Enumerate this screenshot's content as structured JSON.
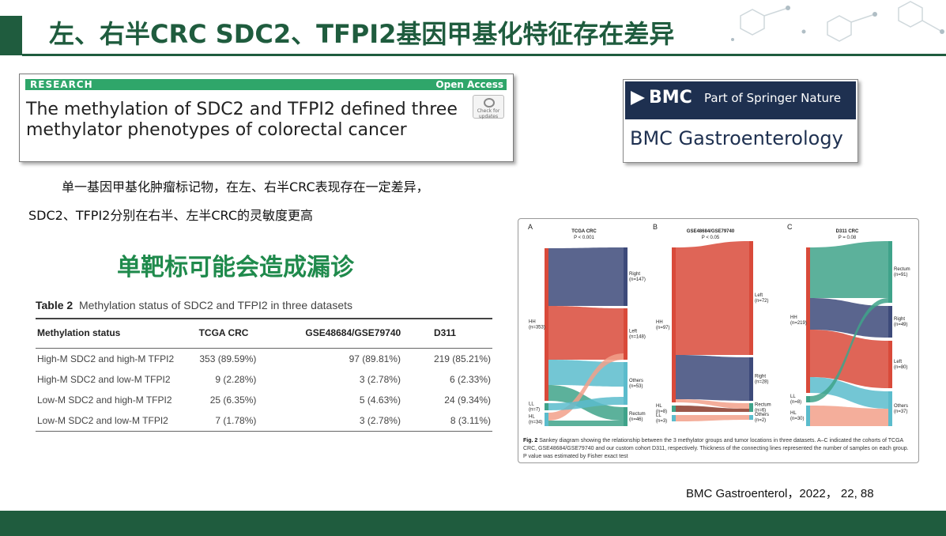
{
  "slide": {
    "title": "左、右半CRC SDC2、TFPI2基因甲基化特征存在差异",
    "paper": {
      "badge": "RESEARCH",
      "open_access": "Open Access",
      "title": "The methylation of SDC2 and TFPI2 defined three methylator phenotypes of colorectal cancer",
      "check_label": "Check for updates"
    },
    "journal": {
      "brand": "BMC",
      "part_of": "Part of Springer Nature",
      "name": "BMC Gastroenterology"
    },
    "description_line1": "单一基因甲基化肿瘤标记物，在左、右半CRC表现存在一定差异，",
    "description_line2": "SDC2、TFPI2分别在右半、左半CRC的灵敏度更高",
    "emphasis": "单靶标可能会造成漏诊",
    "citation": "BMC Gastroenterol，2022， 22, 88"
  },
  "table": {
    "label": "Table 2",
    "caption": "Methylation status of SDC2 and TFPI2 in three datasets",
    "headers": [
      "Methylation status",
      "TCGA CRC",
      "GSE48684/GSE79740",
      "D311"
    ],
    "rows": [
      [
        "High-M SDC2 and high-M TFPI2",
        "353 (89.59%)",
        "97 (89.81%)",
        "219 (85.21%)"
      ],
      [
        "High-M SDC2 and low-M TFPI2",
        "9 (2.28%)",
        "3 (2.78%)",
        "6 (2.33%)"
      ],
      [
        "Low-M SDC2 and high-M TFPI2",
        "25 (6.35%)",
        "5 (4.63%)",
        "24 (9.34%)"
      ],
      [
        "Low-M SDC2 and low-M TFPI2",
        "7 (1.78%)",
        "3 (2.78%)",
        "8 (3.11%)"
      ]
    ]
  },
  "figure": {
    "panels": [
      {
        "letter": "A",
        "title": "TCGA CRC",
        "pvalue": "P < 0.001",
        "left": [
          "HH\n(n=353)",
          "LL\n(n=7)",
          "HL\n(n=34)"
        ],
        "right": [
          "Right\n(n=147)",
          "Left\n(n=148)",
          "Others\n(n=53)",
          "Rectum\n(n=46)"
        ]
      },
      {
        "letter": "B",
        "title": "GSE48684/GSE79740",
        "pvalue": "P < 0.05",
        "left": [
          "HH\n(n=97)",
          "HL\n(n=8)",
          "LL\n(n=3)"
        ],
        "right": [
          "Left\n(n=72)",
          "Right\n(n=28)",
          "Rectum\n(n=6)",
          "Others\n(n=2)"
        ]
      },
      {
        "letter": "C",
        "title": "D311 CRC",
        "pvalue": "P = 0.08",
        "left": [
          "HH\n(n=219)",
          "LL\n(n=8)",
          "HL\n(n=30)"
        ],
        "right": [
          "Rectum\n(n=91)",
          "Right\n(n=49)",
          "Left\n(n=80)",
          "Others\n(n=37)"
        ]
      }
    ],
    "caption_label": "Fig. 2",
    "caption": "Sankey diagram showing the relationship between the 3 methylator groups and tumor locations in three datasets. A–C indicated the cohorts of TCGA CRC, GSE48684/GSE79740 and our custom cohort D311, respectively. Thickness of the connecting lines represented the number of samples on each group. P value was estimated by Fisher exact test"
  },
  "colors": {
    "theme_green": "#1f5c3e",
    "accent_green": "#1f8a4c",
    "navy": "#3d4a7a",
    "red": "#d94a3a",
    "teal": "#3fa38a",
    "cyan": "#5bbccc",
    "salmon": "#f2a08a"
  }
}
